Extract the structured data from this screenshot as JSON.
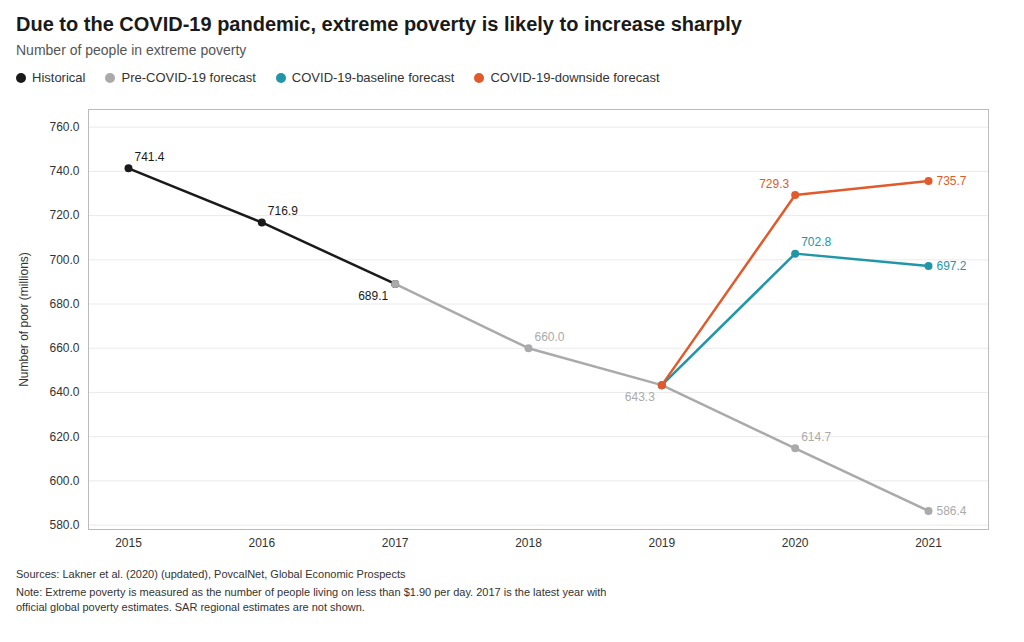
{
  "chart_data": {
    "type": "line",
    "title": "Due to the COVID-19 pandemic, extreme poverty is likely to increase sharply",
    "subtitle": "Number of people in extreme poverty",
    "ylabel": "Number of poor (millions)",
    "series": [
      {
        "name": "Historical",
        "color": "#1a1a1a",
        "marker": "circle",
        "x": [
          2015,
          2016,
          2017
        ],
        "values": [
          741.4,
          716.9,
          689.1
        ]
      },
      {
        "name": "Pre-COVID-19 forecast",
        "color": "#aaaaaa",
        "marker": "circle",
        "x": [
          2017,
          2018,
          2019,
          2020,
          2021
        ],
        "values": [
          689.1,
          660.0,
          643.3,
          614.7,
          586.4
        ]
      },
      {
        "name": "COVID-19-baseline forecast",
        "color": "#2196a8",
        "marker": "circle",
        "x": [
          2019,
          2020,
          2021
        ],
        "values": [
          643.3,
          702.8,
          697.2
        ]
      },
      {
        "name": "COVID-19-downside forecast",
        "color": "#e05a2b",
        "marker": "circle",
        "x": [
          2019,
          2020,
          2021
        ],
        "values": [
          643.3,
          729.3,
          735.7
        ]
      }
    ],
    "annotations": [
      {
        "series": "Historical",
        "x": 2015,
        "y": 741.4,
        "text": "741.4"
      },
      {
        "series": "Historical",
        "x": 2016,
        "y": 716.9,
        "text": "716.9"
      },
      {
        "series": "Historical",
        "x": 2017,
        "y": 689.1,
        "text": "689.1"
      },
      {
        "series": "Pre-COVID-19 forecast",
        "x": 2018,
        "y": 660.0,
        "text": "660.0"
      },
      {
        "series": "Pre-COVID-19 forecast",
        "x": 2019,
        "y": 643.3,
        "text": "643.3"
      },
      {
        "series": "Pre-COVID-19 forecast",
        "x": 2020,
        "y": 614.7,
        "text": "614.7"
      },
      {
        "series": "Pre-COVID-19 forecast",
        "x": 2021,
        "y": 586.4,
        "text": "586.4"
      },
      {
        "series": "COVID-19-baseline forecast",
        "x": 2020,
        "y": 702.8,
        "text": "702.8"
      },
      {
        "series": "COVID-19-baseline forecast",
        "x": 2021,
        "y": 697.2,
        "text": "697.2"
      },
      {
        "series": "COVID-19-downside forecast",
        "x": 2020,
        "y": 729.3,
        "text": "729.3"
      },
      {
        "series": "COVID-19-downside forecast",
        "x": 2021,
        "y": 735.7,
        "text": "735.7"
      }
    ],
    "xlim": [
      2014.7,
      2021.45
    ],
    "xticks": [
      2015,
      2016,
      2017,
      2018,
      2019,
      2020,
      2021
    ],
    "ylim": [
      578.0,
      768.0
    ],
    "yticks": [
      {
        "value": 580,
        "label": "580.0"
      },
      {
        "value": 600,
        "label": "600.0"
      },
      {
        "value": 620,
        "label": "620.0"
      },
      {
        "value": 640,
        "label": "640.0"
      },
      {
        "value": 660,
        "label": "660.0"
      },
      {
        "value": 680,
        "label": "680.0"
      },
      {
        "value": 700,
        "label": "700.0"
      },
      {
        "value": 720,
        "label": "720.0"
      },
      {
        "value": 740,
        "label": "740.0"
      },
      {
        "value": 760,
        "label": "760.0"
      }
    ],
    "grid": true,
    "legend": "top",
    "source": "Sources: Lakner et al. (2020) (updated), PovcalNet, Global Economic Prospects",
    "note": "Note: Extreme poverty is measured as the number of people living on less than $1.90 per day. 2017 is the latest year with\nofficial global poverty estimates. SAR regional estimates are not shown."
  }
}
